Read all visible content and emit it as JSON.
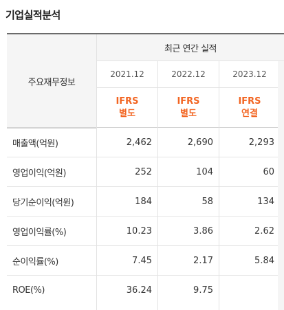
{
  "section_title": "기업실적분석",
  "header": {
    "row_label": "주요재무정보",
    "period_title": "최근 연간 실적",
    "columns": [
      {
        "year": "2021.12",
        "std_line1": "IFRS",
        "std_line2": "별도"
      },
      {
        "year": "2022.12",
        "std_line1": "IFRS",
        "std_line2": "별도"
      },
      {
        "year": "2023.12",
        "std_line1": "IFRS",
        "std_line2": "연결"
      }
    ]
  },
  "rows": [
    {
      "label": "매출액(억원)",
      "values": [
        "2,462",
        "2,690",
        "2,293"
      ]
    },
    {
      "label": "영업이익(억원)",
      "values": [
        "252",
        "104",
        "60"
      ]
    },
    {
      "label": "당기순이익(억원)",
      "values": [
        "184",
        "58",
        "134"
      ]
    },
    {
      "label": "영업이익률(%)",
      "values": [
        "10.23",
        "3.86",
        "2.62"
      ]
    },
    {
      "label": "순이익률(%)",
      "values": [
        "7.45",
        "2.17",
        "5.84"
      ]
    },
    {
      "label": "ROE(%)",
      "values": [
        "36.24",
        "9.75",
        ""
      ]
    }
  ]
}
